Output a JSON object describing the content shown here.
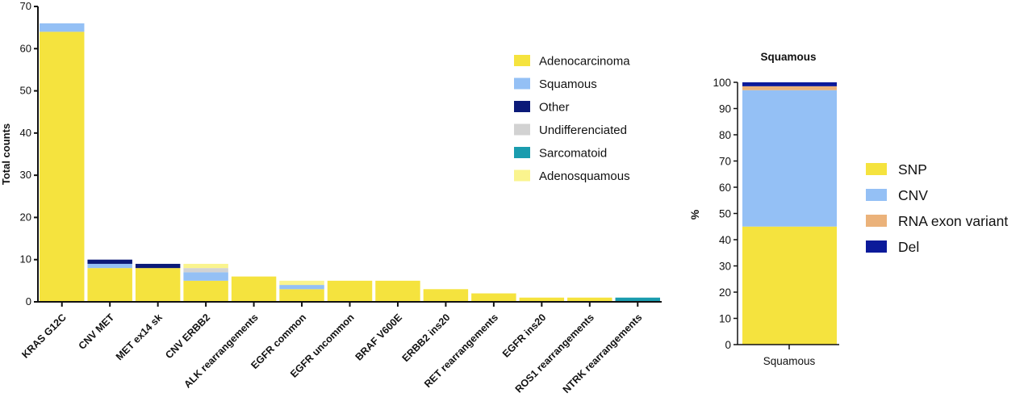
{
  "chart_data": [
    {
      "type": "bar",
      "stacked": true,
      "title": "",
      "xlabel": "",
      "ylabel": "Total counts",
      "ylim": [
        0,
        70
      ],
      "yticks": [
        0,
        10,
        20,
        30,
        40,
        50,
        60,
        70
      ],
      "categories": [
        "KRAS G12C",
        "CNV MET",
        "MET ex14 sk",
        "CNV ERBB2",
        "ALK rearrangements",
        "EGFR common",
        "EGFR uncommon",
        "BRAF V600E",
        "ERBB2 ins20",
        "RET rearrangements",
        "EGFR ins20",
        "ROS1 rearrangements",
        "NTRK rearrangements"
      ],
      "series": [
        {
          "name": "Adenocarcinoma",
          "color": "#f5e33e",
          "values": [
            64,
            8,
            8,
            5,
            6,
            3,
            5,
            5,
            3,
            2,
            1,
            1,
            0
          ]
        },
        {
          "name": "Squamous",
          "color": "#94c0f5",
          "values": [
            2,
            1,
            0,
            2,
            0,
            1,
            0,
            0,
            0,
            0,
            0,
            0,
            0
          ]
        },
        {
          "name": "Other",
          "color": "#0b1a78",
          "values": [
            0,
            1,
            1,
            0,
            0,
            0,
            0,
            0,
            0,
            0,
            0,
            0,
            0
          ]
        },
        {
          "name": "Undifferenciated",
          "color": "#d2d2d2",
          "values": [
            0,
            0,
            0,
            1,
            0,
            0,
            0,
            0,
            0,
            0,
            0,
            0,
            0
          ]
        },
        {
          "name": "Sarcomatoid",
          "color": "#1a9cae",
          "values": [
            0,
            0,
            0,
            0,
            0,
            0,
            0,
            0,
            0,
            0,
            0,
            0,
            1
          ]
        },
        {
          "name": "Adenosquamous",
          "color": "#faf48e",
          "values": [
            0,
            0,
            0,
            1,
            0,
            1,
            0,
            0,
            0,
            0,
            0,
            0,
            0
          ]
        }
      ],
      "legend_position": "right"
    },
    {
      "type": "bar",
      "stacked": true,
      "title": "Squamous",
      "xlabel": "",
      "ylabel": "%",
      "ylim": [
        0,
        100
      ],
      "yticks": [
        0,
        10,
        20,
        30,
        40,
        50,
        60,
        70,
        80,
        90,
        100
      ],
      "categories": [
        "Squamous"
      ],
      "series": [
        {
          "name": "SNP",
          "color": "#f5e33e",
          "values": [
            45
          ]
        },
        {
          "name": "CNV",
          "color": "#94c0f5",
          "values": [
            52
          ]
        },
        {
          "name": "RNA exon variant",
          "color": "#ebb27a",
          "values": [
            1.5
          ]
        },
        {
          "name": "Del",
          "color": "#0b1a9a",
          "values": [
            1.5
          ]
        }
      ],
      "legend_position": "right"
    }
  ]
}
